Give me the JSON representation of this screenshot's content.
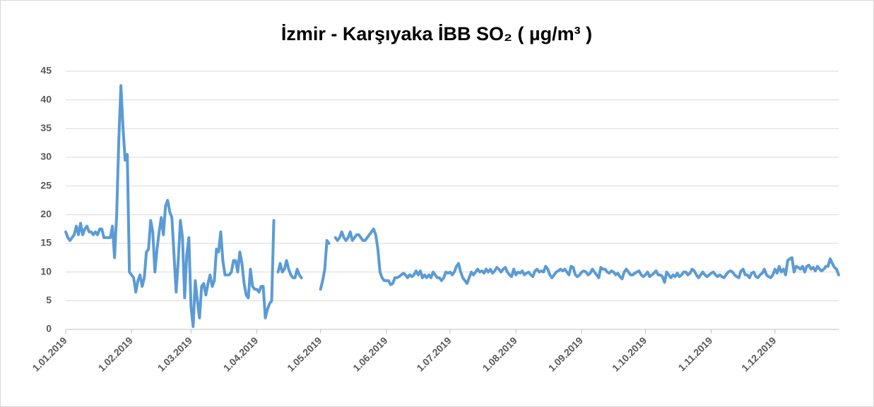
{
  "chart_data": {
    "type": "line",
    "title": "İzmir - Karşıyaka İBB SO₂ ( µg/m³ )",
    "categories": [
      "1.01.2019",
      null,
      null,
      null,
      null,
      null,
      null,
      null,
      null,
      null,
      null,
      null,
      null,
      null,
      null,
      null,
      null,
      null,
      null,
      null,
      null,
      null,
      null,
      null,
      null,
      null,
      null,
      null,
      null,
      null,
      null,
      "1.02.2019",
      null,
      null,
      null,
      null,
      null,
      null,
      null,
      null,
      null,
      null,
      null,
      null,
      null,
      null,
      null,
      null,
      null,
      null,
      null,
      null,
      null,
      null,
      null,
      null,
      null,
      null,
      null,
      "1.03.2019",
      null,
      null,
      null,
      null,
      null,
      null,
      null,
      null,
      null,
      null,
      null,
      null,
      null,
      null,
      null,
      null,
      null,
      null,
      null,
      null,
      null,
      null,
      null,
      null,
      null,
      null,
      null,
      null,
      null,
      null,
      "1.04.2019",
      null,
      null,
      null,
      null,
      null,
      null,
      null,
      null,
      null,
      null,
      null,
      null,
      null,
      null,
      null,
      null,
      null,
      null,
      null,
      null,
      null,
      null,
      null,
      null,
      null,
      null,
      null,
      null,
      null,
      "1.05.2019",
      null,
      null,
      null,
      null,
      null,
      null,
      null,
      null,
      null,
      null,
      null,
      null,
      null,
      null,
      null,
      null,
      null,
      null,
      null,
      null,
      null,
      null,
      null,
      null,
      null,
      null,
      null,
      null,
      null,
      null,
      "1.06.2019",
      null,
      null,
      null,
      null,
      null,
      null,
      null,
      null,
      null,
      null,
      null,
      null,
      null,
      null,
      null,
      null,
      null,
      null,
      null,
      null,
      null,
      null,
      null,
      null,
      null,
      null,
      null,
      null,
      null,
      "1.07.2019",
      null,
      null,
      null,
      null,
      null,
      null,
      null,
      null,
      null,
      null,
      null,
      null,
      null,
      null,
      null,
      null,
      null,
      null,
      null,
      null,
      null,
      null,
      null,
      null,
      null,
      null,
      null,
      null,
      null,
      null,
      "1.08.2019",
      null,
      null,
      null,
      null,
      null,
      null,
      null,
      null,
      null,
      null,
      null,
      null,
      null,
      null,
      null,
      null,
      null,
      null,
      null,
      null,
      null,
      null,
      null,
      null,
      null,
      null,
      null,
      null,
      null,
      null,
      "1.09.2019",
      null,
      null,
      null,
      null,
      null,
      null,
      null,
      null,
      null,
      null,
      null,
      null,
      null,
      null,
      null,
      null,
      null,
      null,
      null,
      null,
      null,
      null,
      null,
      null,
      null,
      null,
      null,
      null,
      null,
      "1.10.2019",
      null,
      null,
      null,
      null,
      null,
      null,
      null,
      null,
      null,
      null,
      null,
      null,
      null,
      null,
      null,
      null,
      null,
      null,
      null,
      null,
      null,
      null,
      null,
      null,
      null,
      null,
      null,
      null,
      null,
      null,
      "1.11.2019",
      null,
      null,
      null,
      null,
      null,
      null,
      null,
      null,
      null,
      null,
      null,
      null,
      null,
      null,
      null,
      null,
      null,
      null,
      null,
      null,
      null,
      null,
      null,
      null,
      null,
      null,
      null,
      null,
      null,
      "1.12.2019",
      null,
      null,
      null,
      null,
      null,
      null,
      null,
      null,
      null,
      null,
      null,
      null,
      null,
      null,
      null,
      null,
      null,
      null,
      null,
      null,
      null,
      null,
      null,
      null,
      null,
      null,
      null,
      null,
      null,
      null
    ],
    "series": [
      {
        "color": "#5b9bd5",
        "values": [
          17,
          16,
          15.5,
          16,
          16.5,
          18,
          16.5,
          18.5,
          16.5,
          17.5,
          18,
          17,
          17,
          16.5,
          17,
          16.5,
          17.5,
          17.5,
          16,
          16,
          16,
          16,
          18,
          12.5,
          20,
          33,
          42.5,
          35,
          29.5,
          30.5,
          10,
          9.5,
          9,
          6.5,
          8.5,
          9.5,
          7.5,
          9,
          13.5,
          14,
          19,
          17,
          10,
          14,
          17,
          19.5,
          16.5,
          21.5,
          22.5,
          20.5,
          19.5,
          13,
          6.5,
          12,
          19,
          16,
          5.5,
          13,
          16,
          4,
          0.5,
          8.5,
          5,
          2,
          7.5,
          8,
          6,
          8,
          9.5,
          7.5,
          8.5,
          14,
          13.5,
          17,
          12,
          9.5,
          9.5,
          9.5,
          10,
          12,
          12,
          10,
          13.5,
          11.5,
          8,
          6,
          5.5,
          10.5,
          7.5,
          7,
          7,
          6.5,
          7.5,
          7.5,
          2,
          3.5,
          4.5,
          5,
          19,
          null,
          10,
          11.5,
          10,
          10.5,
          12,
          10.5,
          9.5,
          9,
          9,
          10.5,
          9.5,
          9,
          null,
          null,
          null,
          null,
          null,
          null,
          null,
          null,
          7,
          8.5,
          10.5,
          15.5,
          15,
          null,
          null,
          16,
          15.5,
          16,
          17,
          16,
          15.5,
          16,
          17,
          15.5,
          16,
          16.5,
          16.5,
          16,
          15.5,
          15.5,
          16,
          16.5,
          17,
          17.5,
          16.5,
          14,
          10,
          9,
          8.5,
          8.5,
          8.5,
          7.8,
          8,
          9,
          9,
          9.2,
          9.5,
          9.8,
          9.5,
          9,
          9.5,
          9.2,
          9.5,
          10.2,
          9.5,
          10.2,
          9,
          9.5,
          9,
          9.5,
          9,
          10,
          9.5,
          9,
          9,
          8.5,
          9,
          10,
          9.8,
          10,
          9.5,
          10,
          11,
          11.5,
          10,
          9,
          8.5,
          8,
          9,
          10,
          9.5,
          10,
          10.5,
          10,
          10.2,
          9.8,
          10.5,
          10,
          10.5,
          9.8,
          10.2,
          10.8,
          10.5,
          10,
          10.5,
          10.8,
          10,
          9.5,
          9.2,
          10.5,
          9.5,
          10,
          9.8,
          10.2,
          9.5,
          9.8,
          10,
          9.5,
          9.2,
          10.2,
          10.5,
          10,
          10.2,
          10,
          11,
          10.5,
          9.5,
          9,
          9.5,
          10,
          10.2,
          10.5,
          10.2,
          10.5,
          10,
          9.5,
          11,
          10.8,
          9.5,
          9.2,
          9.5,
          10,
          10.2,
          10,
          9.5,
          9.8,
          10.5,
          10,
          9.5,
          9,
          10.8,
          10.5,
          10.5,
          10,
          9.8,
          10.2,
          10,
          9.5,
          9.8,
          9.2,
          8.8,
          10,
          10.5,
          10,
          9.5,
          9.5,
          9.8,
          10,
          10.2,
          9.5,
          9.2,
          9.5,
          10,
          9.2,
          9.5,
          9.8,
          10.2,
          9.5,
          9.5,
          9.2,
          8.2,
          10,
          9.5,
          9,
          9.5,
          9.2,
          9.8,
          9.2,
          9.5,
          10,
          10,
          9.5,
          9.8,
          10.5,
          10.2,
          9.5,
          9,
          9.5,
          10,
          9.5,
          9.2,
          9.5,
          9.8,
          10,
          9.5,
          9.2,
          9.5,
          9.2,
          9,
          9.5,
          10,
          10.2,
          10,
          9.5,
          9.2,
          9,
          10.2,
          10.5,
          9.5,
          9.5,
          9,
          9.8,
          10,
          9.2,
          9,
          9.5,
          9.8,
          10.5,
          9.5,
          9.2,
          9,
          9.5,
          10.5,
          9.8,
          11,
          10,
          10.5,
          9.5,
          12,
          12.3,
          12.5,
          10,
          11,
          10.8,
          10.5,
          11,
          10,
          11,
          11.2,
          10.5,
          10.8,
          10.2,
          11,
          10.5,
          10.2,
          10.5,
          11,
          11,
          12.3,
          11.5,
          10.8,
          10.5,
          9.5
        ]
      }
    ],
    "ylim": [
      0,
      45
    ],
    "yticks": [
      0,
      5,
      10,
      15,
      20,
      25,
      30,
      35,
      40,
      45
    ],
    "grid": true
  }
}
